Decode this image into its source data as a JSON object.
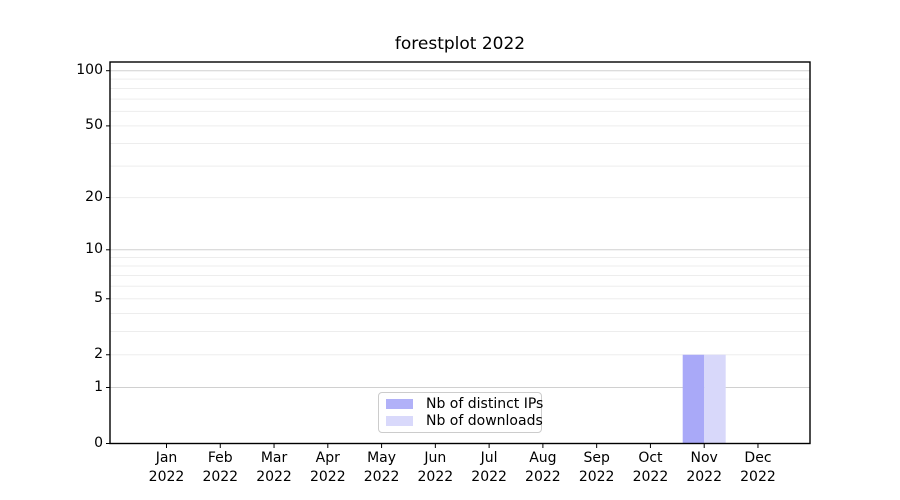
{
  "figure": {
    "background": "#ffffff"
  },
  "chart_data": {
    "type": "bar",
    "title": "forestplot 2022",
    "x_categories": [
      {
        "label": "Jan",
        "sublabel": "2022"
      },
      {
        "label": "Feb",
        "sublabel": "2022"
      },
      {
        "label": "Mar",
        "sublabel": "2022"
      },
      {
        "label": "Apr",
        "sublabel": "2022"
      },
      {
        "label": "May",
        "sublabel": "2022"
      },
      {
        "label": "Jun",
        "sublabel": "2022"
      },
      {
        "label": "Jul",
        "sublabel": "2022"
      },
      {
        "label": "Aug",
        "sublabel": "2022"
      },
      {
        "label": "Sep",
        "sublabel": "2022"
      },
      {
        "label": "Oct",
        "sublabel": "2022"
      },
      {
        "label": "Nov",
        "sublabel": "2022"
      },
      {
        "label": "Dec",
        "sublabel": "2022"
      }
    ],
    "series": [
      {
        "name": "Nb of distinct IPs",
        "color": "#A9A9F8",
        "legend_color": "#B1B1F8",
        "values": [
          0,
          0,
          0,
          0,
          0,
          0,
          0,
          0,
          0,
          0,
          2,
          0
        ]
      },
      {
        "name": "Nb of downloads",
        "color": "#D8D8FA",
        "legend_color": "#D9D9FB",
        "values": [
          0,
          0,
          0,
          0,
          0,
          0,
          0,
          0,
          0,
          0,
          2,
          0
        ]
      }
    ],
    "y_axis": {
      "scale": "log1p",
      "tick_values": [
        0,
        1,
        2,
        5,
        10,
        20,
        50,
        100
      ],
      "grid_major_values": [
        1,
        10,
        100
      ],
      "grid_minor_values": [
        2,
        3,
        4,
        5,
        6,
        7,
        8,
        9,
        20,
        30,
        40,
        50,
        60,
        70,
        80,
        90
      ],
      "range": [
        0,
        110
      ]
    },
    "legend_position": "lower center",
    "grid": true,
    "colors": {
      "grid_major": "#d0d0d0",
      "grid_minor": "#ededed",
      "spine": "#000000",
      "tick": "#000000"
    }
  }
}
